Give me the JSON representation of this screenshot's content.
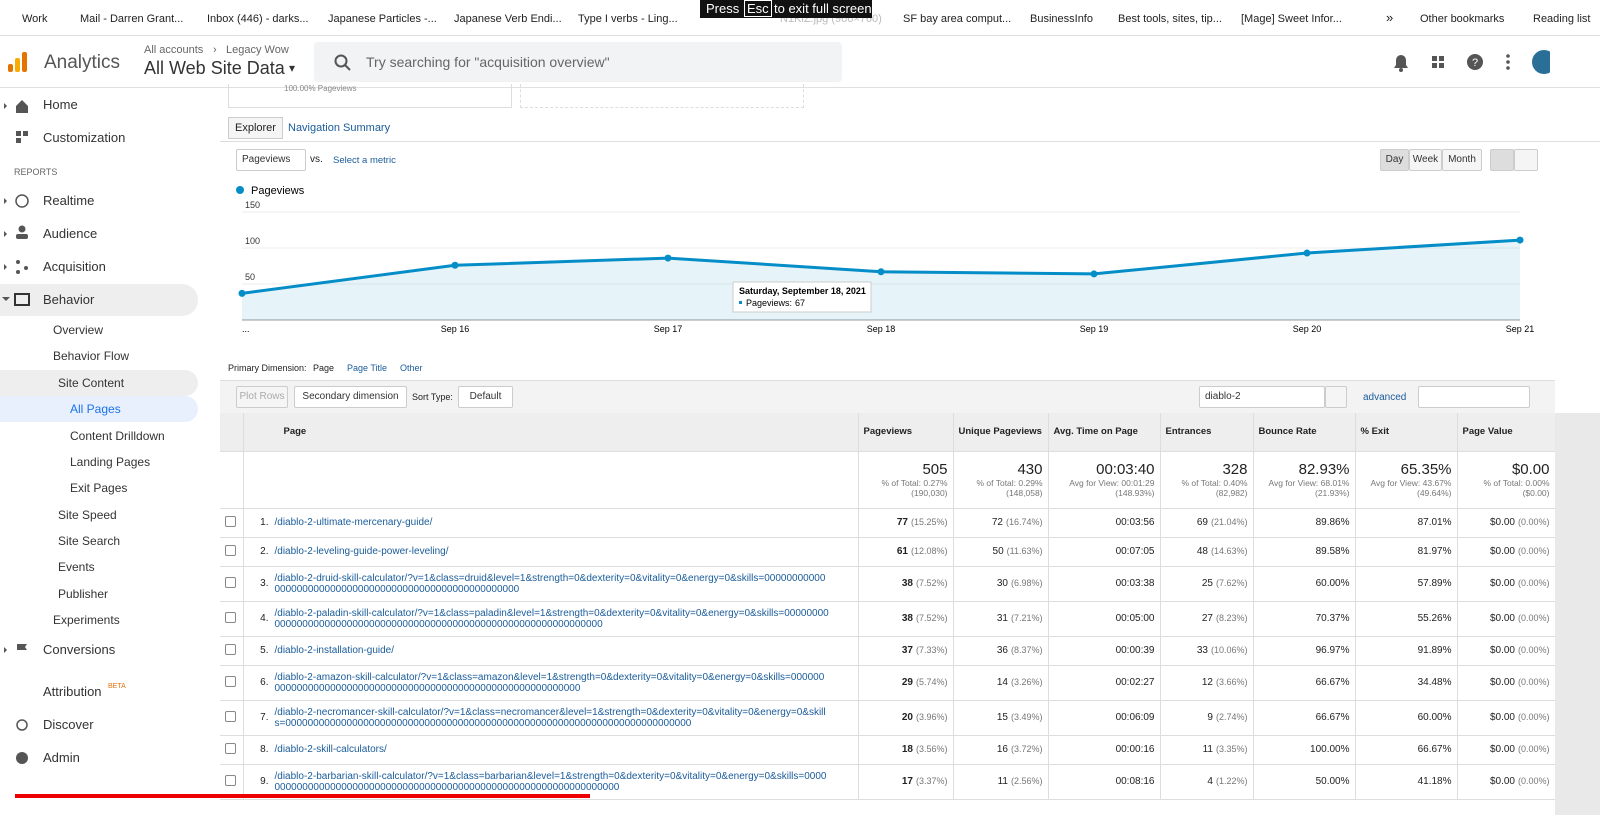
{
  "browser": {
    "bookmarks": [
      "Work",
      "Mail - Darren Grant...",
      "Inbox (446) - darks...",
      "Japanese Particles -...",
      "Japanese Verb Endi...",
      "Type I verbs - Ling...",
      "SF bay area comput...",
      "BusinessInfo",
      "Best tools, sites, tip...",
      "[Mage] Sweet Infor..."
    ],
    "more": "»",
    "other": "Other bookmarks",
    "reading": "Reading list",
    "download": "N1KiZ.jpg (966×760)",
    "fullscreen": {
      "press": "Press",
      "key": "Esc",
      "rest": "to exit full screen"
    }
  },
  "header": {
    "app": "Analytics",
    "breadcrumb": [
      "All accounts",
      "Legacy Wow"
    ],
    "property": "All Web Site Data",
    "search_placeholder": "Try searching for \"acquisition overview\""
  },
  "sidebar": {
    "items": [
      "Home",
      "Customization",
      "REPORTS",
      "Realtime",
      "Audience",
      "Acquisition",
      "Behavior",
      "Overview",
      "Behavior Flow",
      "Site Content",
      "All Pages",
      "Content Drilldown",
      "Landing Pages",
      "Exit Pages",
      "Site Speed",
      "Site Search",
      "Events",
      "Publisher",
      "Experiments",
      "Conversions",
      "Attribution",
      "Discover",
      "Admin"
    ],
    "beta": "BETA"
  },
  "summary": {
    "partial": "100.00% Pageviews"
  },
  "tabs": [
    "Explorer",
    "Navigation Summary"
  ],
  "controls": {
    "metric": "Pageviews",
    "vs": "vs.",
    "select_metric": "Select a metric",
    "periods": [
      "Day",
      "Week",
      "Month"
    ]
  },
  "chart": {
    "type": "line",
    "categories": [
      "...",
      "Sep 16",
      "Sep 17",
      "Sep 18",
      "Sep 19",
      "Sep 20",
      "Sep 21"
    ],
    "series": [
      {
        "name": "Pageviews",
        "color": "#058dc7",
        "values": [
          37,
          76,
          86,
          67,
          64,
          93,
          111
        ]
      }
    ],
    "ylim": [
      0,
      150
    ],
    "yticks": [
      50,
      100,
      150
    ],
    "tooltip": {
      "title": "Saturday, September 18, 2021",
      "label": "Pageviews:"
    }
  },
  "table_controls": {
    "primary_label": "Primary Dimension:",
    "primary": [
      "Page",
      "Page Title",
      "Other"
    ],
    "plot_rows": "Plot Rows",
    "secondary": "Secondary dimension",
    "sort_label": "Sort Type:",
    "sort": "Default",
    "filter": "diablo-2",
    "advanced": "advanced"
  },
  "table": {
    "headers": [
      "Page",
      "Pageviews",
      "Unique Pageviews",
      "Avg. Time on Page",
      "Entrances",
      "Bounce Rate",
      "% Exit",
      "Page Value"
    ],
    "totals": {
      "pageviews": "505",
      "pageviews_sub": "% of Total: 0.27% (190,030)",
      "unique": "430",
      "unique_sub": "% of Total: 0.29% (148,058)",
      "avg_time": "00:03:40",
      "avg_time_sub": "Avg for View: 00:01:29 (148.93%)",
      "entrances": "328",
      "entrances_sub": "% of Total: 0.40% (82,982)",
      "bounce": "82.93%",
      "bounce_sub": "Avg for View: 68.01% (21.93%)",
      "exit": "65.35%",
      "exit_sub": "Avg for View: 43.67% (49.64%)",
      "value": "$0.00",
      "value_sub": "% of Total: 0.00% ($0.00)"
    },
    "rows": [
      {
        "num": "1.",
        "page": "/diablo-2-ultimate-mercenary-guide/",
        "pageviews": "77",
        "pageviews_pct": "(15.25%)",
        "unique": "72",
        "unique_pct": "(16.74%)",
        "avg_time": "00:03:56",
        "entrances": "69",
        "entrances_pct": "(21.04%)",
        "bounce": "89.86%",
        "exit": "87.01%",
        "value": "$0.00",
        "value_pct": "(0.00%)"
      },
      {
        "num": "2.",
        "page": "/diablo-2-leveling-guide-power-leveling/",
        "pageviews": "61",
        "pageviews_pct": "(12.08%)",
        "unique": "50",
        "unique_pct": "(11.63%)",
        "avg_time": "00:07:05",
        "entrances": "48",
        "entrances_pct": "(14.63%)",
        "bounce": "89.58%",
        "exit": "81.97%",
        "value": "$0.00",
        "value_pct": "(0.00%)"
      },
      {
        "num": "3.",
        "page": "/diablo-2-druid-skill-calculator/?v=1&class=druid&level=1&strength=0&dexterity=0&vitality=0&energy=0&skills=0000000000000000000000000000000000000000000000000000000",
        "pageviews": "38",
        "pageviews_pct": "(7.52%)",
        "unique": "30",
        "unique_pct": "(6.98%)",
        "avg_time": "00:03:38",
        "entrances": "25",
        "entrances_pct": "(7.62%)",
        "bounce": "60.00%",
        "exit": "57.89%",
        "value": "$0.00",
        "value_pct": "(0.00%)"
      },
      {
        "num": "4.",
        "page": "/diablo-2-paladin-skill-calculator/?v=1&class=paladin&level=1&strength=0&dexterity=0&vitality=0&energy=0&skills=0000000000000000000000000000000000000000000000000000000000000000000",
        "pageviews": "38",
        "pageviews_pct": "(7.52%)",
        "unique": "31",
        "unique_pct": "(7.21%)",
        "avg_time": "00:05:00",
        "entrances": "27",
        "entrances_pct": "(8.23%)",
        "bounce": "70.37%",
        "exit": "55.26%",
        "value": "$0.00",
        "value_pct": "(0.00%)"
      },
      {
        "num": "5.",
        "page": "/diablo-2-installation-guide/",
        "pageviews": "37",
        "pageviews_pct": "(7.33%)",
        "unique": "36",
        "unique_pct": "(8.37%)",
        "avg_time": "00:00:39",
        "entrances": "33",
        "entrances_pct": "(10.06%)",
        "bounce": "96.97%",
        "exit": "91.89%",
        "value": "$0.00",
        "value_pct": "(0.00%)"
      },
      {
        "num": "6.",
        "page": "/diablo-2-amazon-skill-calculator/?v=1&class=amazon&level=1&strength=0&dexterity=0&vitality=0&energy=0&skills=0000000000000000000000000000000000000000000000000000000000000",
        "pageviews": "29",
        "pageviews_pct": "(5.74%)",
        "unique": "14",
        "unique_pct": "(3.26%)",
        "avg_time": "00:02:27",
        "entrances": "12",
        "entrances_pct": "(3.66%)",
        "bounce": "66.67%",
        "exit": "34.48%",
        "value": "$0.00",
        "value_pct": "(0.00%)"
      },
      {
        "num": "7.",
        "page": "/diablo-2-necromancer-skill-calculator/?v=1&class=necromancer&level=1&strength=0&dexterity=0&vitality=0&energy=0&skills=0000000000000000000000000000000000000000000000000000000000000000000000000",
        "pageviews": "20",
        "pageviews_pct": "(3.96%)",
        "unique": "15",
        "unique_pct": "(3.49%)",
        "avg_time": "00:06:09",
        "entrances": "9",
        "entrances_pct": "(2.74%)",
        "bounce": "66.67%",
        "exit": "60.00%",
        "value": "$0.00",
        "value_pct": "(0.00%)"
      },
      {
        "num": "8.",
        "page": "/diablo-2-skill-calculators/",
        "pageviews": "18",
        "pageviews_pct": "(3.56%)",
        "unique": "16",
        "unique_pct": "(3.72%)",
        "avg_time": "00:00:16",
        "entrances": "11",
        "entrances_pct": "(3.35%)",
        "bounce": "100.00%",
        "exit": "66.67%",
        "value": "$0.00",
        "value_pct": "(0.00%)"
      },
      {
        "num": "9.",
        "page": "/diablo-2-barbarian-skill-calculator/?v=1&class=barbarian&level=1&strength=0&dexterity=0&vitality=0&energy=0&skills=000000000000000000000000000000000000000000000000000000000000000000",
        "pageviews": "17",
        "pageviews_pct": "(3.37%)",
        "unique": "11",
        "unique_pct": "(2.56%)",
        "avg_time": "00:08:16",
        "entrances": "4",
        "entrances_pct": "(1.22%)",
        "bounce": "50.00%",
        "exit": "41.18%",
        "value": "$0.00",
        "value_pct": "(0.00%)"
      }
    ]
  }
}
